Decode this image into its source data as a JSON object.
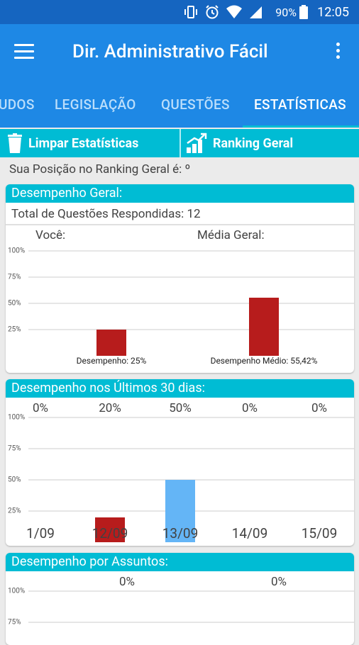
{
  "status_bar": {
    "battery_pct": "90%",
    "time": "12:05"
  },
  "app_bar": {
    "title": "Dir. Administrativo Fácil"
  },
  "tabs": [
    {
      "label": "UDOS",
      "active": false
    },
    {
      "label": "LEGISLAÇÃO",
      "active": false
    },
    {
      "label": "QUESTÕES",
      "active": false
    },
    {
      "label": "ESTATÍSTICAS",
      "active": true
    }
  ],
  "actions": {
    "clear_label": "Limpar Estatísticas",
    "ranking_label": "Ranking Geral"
  },
  "ranking_position_text": "Sua Posição no Ranking Geral é: º",
  "general": {
    "header": "Desempenho Geral:",
    "total_text": "Total de Questões Respondidas: 12",
    "you_label": "Você:",
    "avg_label": "Média Geral:"
  },
  "last30": {
    "header": "Desempenho nos Últimos 30 dias:"
  },
  "subjects": {
    "header": "Desempenho por Assuntos:"
  },
  "colors": {
    "bar_red": "#b71c1c",
    "bar_blue": "#64b5f6",
    "accent": "#00bcd4",
    "primary": "#1e88e5"
  },
  "chart_data": [
    {
      "type": "bar",
      "ylim": [
        0,
        100
      ],
      "yticks": [
        "100%",
        "75%",
        "50%",
        "25%"
      ],
      "categories": [
        "Desempenho: 25%",
        "Desempenho Médio: 55,42%"
      ],
      "values": [
        25,
        55.42
      ]
    },
    {
      "type": "bar",
      "ylim": [
        0,
        100
      ],
      "yticks": [
        "100%",
        "75%",
        "50%",
        "25%"
      ],
      "categories": [
        "1/09",
        "12/09",
        "13/09",
        "14/09",
        "15/09"
      ],
      "top_labels": [
        "0%",
        "20%",
        "50%",
        "0%",
        "0%"
      ],
      "values": [
        0,
        20,
        50,
        0,
        0
      ]
    },
    {
      "type": "bar",
      "ylim": [
        0,
        100
      ],
      "yticks": [
        "100%",
        "75%"
      ],
      "top_labels": [
        "0%",
        "0%"
      ],
      "values": [
        0,
        0
      ]
    }
  ]
}
